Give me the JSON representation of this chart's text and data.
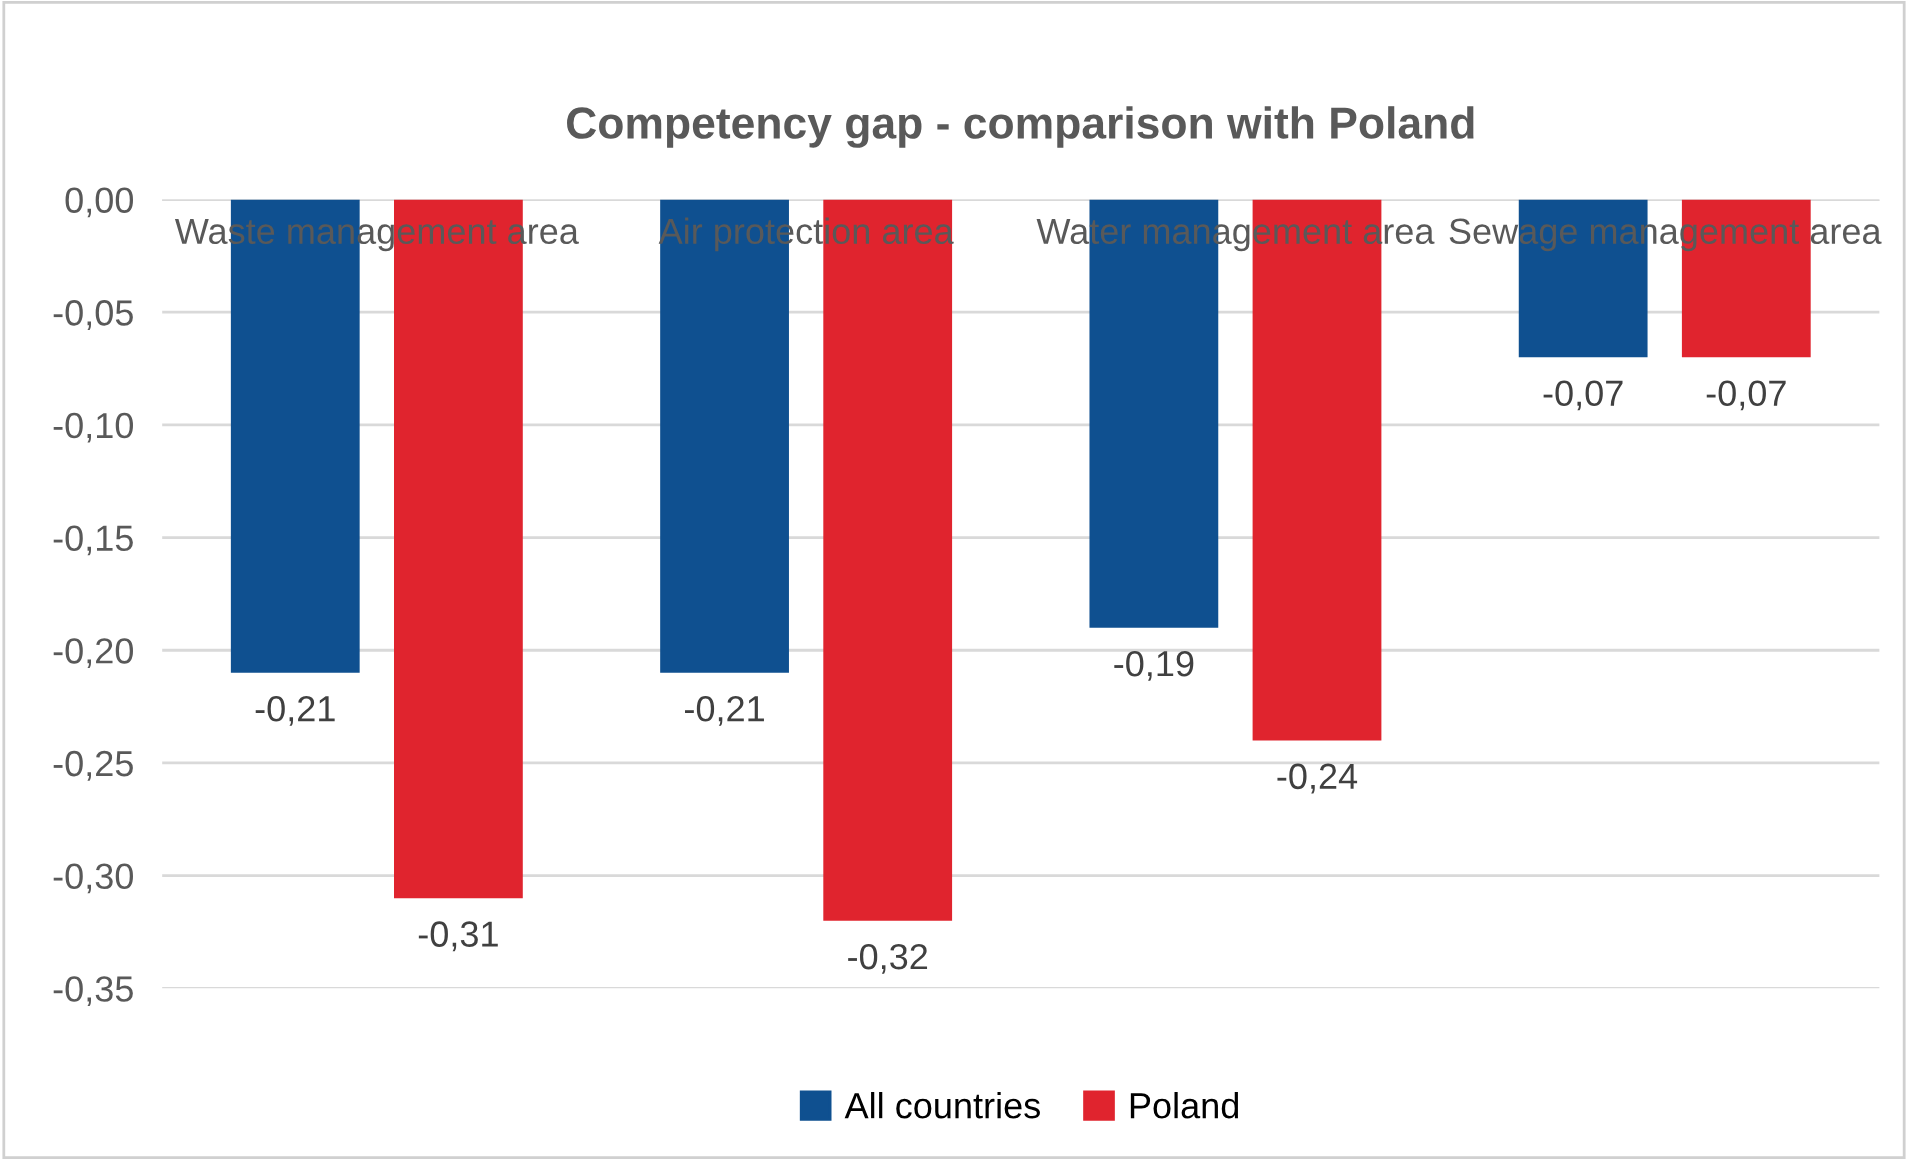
{
  "chart_data": {
    "type": "bar",
    "title": "Competency gap - comparison with Poland",
    "categories": [
      "Waste management area",
      "Air protection area",
      "Water management area",
      "Sewage management area"
    ],
    "series": [
      {
        "name": "All countries",
        "color": "#0f5090",
        "values": [
          -0.21,
          -0.21,
          -0.19,
          -0.07
        ],
        "value_labels": [
          "-0,21",
          "-0,21",
          "-0,19",
          "-0,07"
        ]
      },
      {
        "name": "Poland",
        "color": "#e0242e",
        "values": [
          -0.31,
          -0.32,
          -0.24,
          -0.07
        ],
        "value_labels": [
          "-0,31",
          "-0,32",
          "-0,24",
          "-0,07"
        ]
      }
    ],
    "ylim": [
      -0.35,
      0.0
    ],
    "yticks": [
      {
        "value": 0.0,
        "label": "0,00"
      },
      {
        "value": -0.05,
        "label": "-0,05"
      },
      {
        "value": -0.1,
        "label": "-0,10"
      },
      {
        "value": -0.15,
        "label": "-0,15"
      },
      {
        "value": -0.2,
        "label": "-0,20"
      },
      {
        "value": -0.25,
        "label": "-0,25"
      },
      {
        "value": -0.3,
        "label": "-0,30"
      },
      {
        "value": -0.35,
        "label": "-0,35"
      }
    ],
    "grid": "y",
    "legend": "bottom"
  }
}
